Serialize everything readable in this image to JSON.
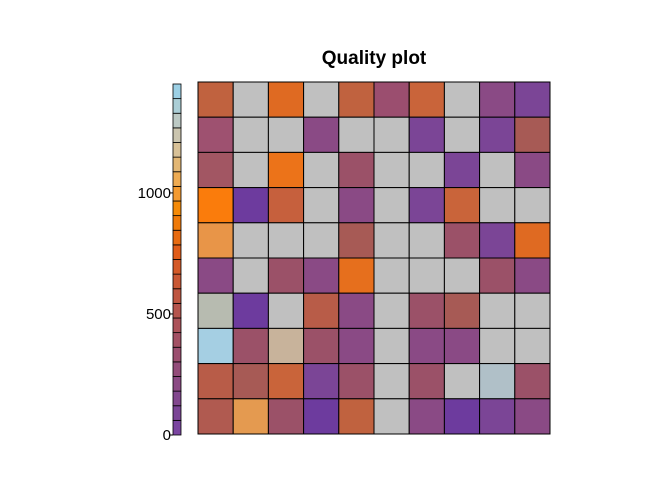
{
  "chart_data": {
    "type": "heatmap",
    "title": "Quality plot",
    "legend_placement": "left",
    "color_scale": {
      "min": 0,
      "max": 1450,
      "ticks": [
        0,
        500,
        1000
      ],
      "tick_labels": [
        "0",
        "500",
        "1000"
      ],
      "swatches": [
        "#7a45a0",
        "#7b4596",
        "#82478e",
        "#8b4a84",
        "#934c7a",
        "#9b4e6f",
        "#a35064",
        "#ac5259",
        "#b5544d",
        "#bf5641",
        "#c95835",
        "#d45a28",
        "#e05c19",
        "#e86b10",
        "#ef7a0a",
        "#f58a07",
        "#f39a30",
        "#eeab52",
        "#e3b774",
        "#d8c197",
        "#cbc5af",
        "#bcc9c4",
        "#abced6",
        "#9cd0e5"
      ]
    },
    "grid": {
      "rows": 10,
      "cols": 10,
      "colors": [
        [
          "#c0623f",
          "#c0c0c0",
          "#df6a22",
          "#c0c0c0",
          "#c0623f",
          "#9b4e6f",
          "#c9643a",
          "#c0c0c0",
          "#8a4a85",
          "#7b4596"
        ],
        [
          "#9e5170",
          "#c0c0c0",
          "#c0c0c0",
          "#8a4a85",
          "#c0c0c0",
          "#c0c0c0",
          "#7b4596",
          "#c0c0c0",
          "#7b4596",
          "#a75a55"
        ],
        [
          "#a25663",
          "#c0c0c0",
          "#ec7319",
          "#c0c0c0",
          "#9b5168",
          "#c0c0c0",
          "#c0c0c0",
          "#7b4596",
          "#c0c0c0",
          "#8a4a85"
        ],
        [
          "#fa7c0c",
          "#6d3b9e",
          "#c6603d",
          "#c0c0c0",
          "#8a4a85",
          "#c0c0c0",
          "#7b4596",
          "#c9643a",
          "#c0c0c0",
          "#c0c0c0"
        ],
        [
          "#e89548",
          "#c0c0c0",
          "#c0c0c0",
          "#c0c0c0",
          "#a75a55",
          "#c0c0c0",
          "#c0c0c0",
          "#9b5168",
          "#7b4596",
          "#df6a22"
        ],
        [
          "#8a4a85",
          "#c0c0c0",
          "#9b5168",
          "#8a4a85",
          "#e66f1d",
          "#c0c0c0",
          "#c0c0c0",
          "#c0c0c0",
          "#9b5168",
          "#8a4a85"
        ],
        [
          "#b7bbb0",
          "#6d3b9e",
          "#c0c0c0",
          "#b85c48",
          "#8a4a85",
          "#c0c0c0",
          "#9b5168",
          "#a75a55",
          "#c0c0c0",
          "#c0c0c0"
        ],
        [
          "#a5cfe3",
          "#9b5168",
          "#c8b39b",
          "#9b5168",
          "#8a4a85",
          "#c0c0c0",
          "#8a4a85",
          "#8a4a85",
          "#c0c0c0",
          "#c0c0c0"
        ],
        [
          "#b85c48",
          "#a75a55",
          "#c9643a",
          "#7b4596",
          "#9b5168",
          "#c0c0c0",
          "#9b5168",
          "#c0c0c0",
          "#b0c0c8",
          "#9b5168"
        ],
        [
          "#b05a50",
          "#e49a50",
          "#9b5168",
          "#6d3b9e",
          "#c0623f",
          "#c0c0c0",
          "#8a4a85",
          "#6d3b9e",
          "#7b4596",
          "#8a4a85"
        ]
      ]
    }
  }
}
